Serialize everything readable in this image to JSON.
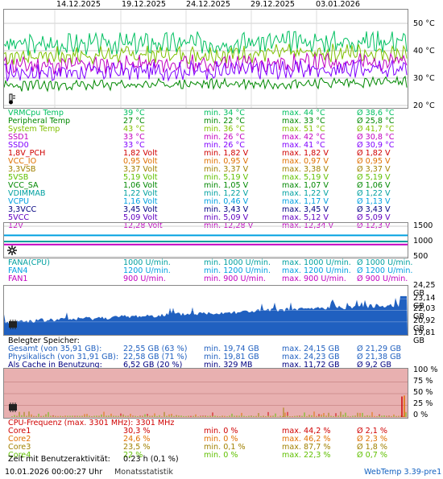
{
  "dates": [
    "14.12.2025",
    "19.12.2025",
    "24.12.2025",
    "29.12.2025",
    "03.01.2026"
  ],
  "temp_panel": {
    "axis": [
      "50 °C",
      "40 °C",
      "30 °C",
      "20 °C"
    ],
    "icon": "thermometer-icon",
    "colors": {
      "vrm": "#00c060",
      "peripheral": "#008800",
      "system": "#80c000",
      "ssd1": "#c000c0",
      "ssd0": "#8000ff"
    }
  },
  "temp_rows": [
    {
      "label": "VRMCpu Temp",
      "cur": "39 °C",
      "min": "min. 34 °C",
      "max": "max. 44 °C",
      "avg": "Ø 38,6 °C",
      "color": "#00c060"
    },
    {
      "label": "Peripheral Temp",
      "cur": "27 °C",
      "min": "min. 22 °C",
      "max": "max. 33 °C",
      "avg": "Ø 25,8 °C",
      "color": "#008800"
    },
    {
      "label": "System Temp",
      "cur": "43 °C",
      "min": "min. 36 °C",
      "max": "max. 51 °C",
      "avg": "Ø 41,7 °C",
      "color": "#80c000"
    },
    {
      "label": "SSD1",
      "cur": "33 °C",
      "min": "min. 26 °C",
      "max": "max. 42 °C",
      "avg": "Ø 30,8 °C",
      "color": "#c000c0"
    },
    {
      "label": "SSD0",
      "cur": "33 °C",
      "min": "min. 26 °C",
      "max": "max. 41 °C",
      "avg": "Ø 30,9 °C",
      "color": "#8000ff"
    }
  ],
  "volt_rows": [
    {
      "label": "1,8V_PCH",
      "cur": "1,82 Volt",
      "min": "min. 1,82 V",
      "max": "max. 1,82 V",
      "avg": "Ø 1,82 V",
      "color": "#d00000"
    },
    {
      "label": "VCC_IO",
      "cur": "0,95 Volt",
      "min": "min. 0,95 V",
      "max": "max. 0,97 V",
      "avg": "Ø 0,95 V",
      "color": "#e07000"
    },
    {
      "label": "3,3VSB",
      "cur": "3,37 Volt",
      "min": "min. 3,37 V",
      "max": "max. 3,38 V",
      "avg": "Ø 3,37 V",
      "color": "#a08000"
    },
    {
      "label": "5VSB",
      "cur": "5,19 Volt",
      "min": "min. 5,19 V",
      "max": "max. 5,19 V",
      "avg": "Ø 5,19 V",
      "color": "#60c000"
    },
    {
      "label": "VCC_SA",
      "cur": "1,06 Volt",
      "min": "min. 1,05 V",
      "max": "max. 1,07 V",
      "avg": "Ø 1,06 V",
      "color": "#008800"
    },
    {
      "label": "VDIMMAB",
      "cur": "1,22 Volt",
      "min": "min. 1,22 V",
      "max": "max. 1,22 V",
      "avg": "Ø 1,22 V",
      "color": "#00a0a0"
    },
    {
      "label": "VCPU",
      "cur": "1,16 Volt",
      "min": "min. 0,46 V",
      "max": "max. 1,17 V",
      "avg": "Ø 1,13 V",
      "color": "#00a0e0"
    },
    {
      "label": "3,3VCC",
      "cur": "3,45 Volt",
      "min": "min. 3,43 V",
      "max": "max. 3,45 V",
      "avg": "Ø 3,43 V",
      "color": "#000080"
    },
    {
      "label": "5VCC",
      "cur": "5,09 Volt",
      "min": "min. 5,09 V",
      "max": "max. 5,12 V",
      "avg": "Ø 5,09 V",
      "color": "#6000c0"
    },
    {
      "label": "12V",
      "cur": "12,28 Volt",
      "min": "min. 12,28 V",
      "max": "max. 12,34 V",
      "avg": "Ø 12,3 V",
      "color": "#c000c0"
    }
  ],
  "fan_panel": {
    "axis": [
      "1500",
      "1000",
      "500"
    ],
    "icon": "fan-icon"
  },
  "fan_rows": [
    {
      "label": "FANA(CPU)",
      "cur": "1000 U/min.",
      "min": "min. 1000 U/min.",
      "max": "max. 1000 U/min.",
      "avg": "Ø 1000 U/min.",
      "color": "#00a0a0"
    },
    {
      "label": "FAN4",
      "cur": "1200 U/min.",
      "min": "min. 1200 U/min.",
      "max": "max. 1200 U/min.",
      "avg": "Ø 1200 U/min.",
      "color": "#00a0e0"
    },
    {
      "label": "FAN1",
      "cur": "900 U/min.",
      "min": "min. 900 U/min.",
      "max": "max. 900 U/min.",
      "avg": "Ø 900 U/min.",
      "color": "#c000c0"
    }
  ],
  "mem_panel": {
    "axis": [
      "24,25 GB",
      "23,14 GB",
      "22,03 GB",
      "20,92 GB",
      "19,81 GB"
    ],
    "icon": "memory-chip-icon",
    "color": "#2060c0"
  },
  "mem_title": "Belegter Speicher:",
  "mem_rows": [
    {
      "label": "Gesamt (von 35,91 GB):",
      "cur": "22,55 GB (63 %)",
      "min": "min. 19,74 GB",
      "max": "max. 24,15 GB",
      "avg": "Ø 21,29 GB",
      "color": "#2060c0"
    },
    {
      "label": "Physikalisch (von 31,91 GB):",
      "cur": "22,58 GB (71 %)",
      "min": "min. 19,81 GB",
      "max": "max. 24,23 GB",
      "avg": "Ø 21,38 GB",
      "color": "#2060c0"
    },
    {
      "label": "Als Cache in Benutzung:",
      "cur": "6,52 GB (20 %)",
      "min": "min. 329 MB",
      "max": "max. 11,72 GB",
      "avg": "Ø 9,2 GB",
      "color": "#000080"
    }
  ],
  "cpu_panel": {
    "axis": [
      "100 %",
      "75 %",
      "50 %",
      "25 %",
      "0 %"
    ],
    "icon": "cpu-chip-icon",
    "bg": "#e8b0b0"
  },
  "cpu_freq": "CPU-Frequenz (max. 3301 MHz): 3301 MHz",
  "cpu_rows": [
    {
      "label": "Core1",
      "cur": "30,3 %",
      "min": "min. 0 %",
      "max": "max. 44,2 %",
      "avg": "Ø 2,1 %",
      "color": "#d00000"
    },
    {
      "label": "Core2",
      "cur": "24,6 %",
      "min": "min. 0 %",
      "max": "max. 46,2 %",
      "avg": "Ø 2,3 %",
      "color": "#e07000"
    },
    {
      "label": "Core3",
      "cur": "23,5 %",
      "min": "min. 0,1 %",
      "max": "max. 87,7 %",
      "avg": "Ø 1,8 %",
      "color": "#a08000"
    },
    {
      "label": "Core4",
      "cur": "22 %",
      "min": "min. 0 %",
      "max": "max. 22,3 %",
      "avg": "Ø 0,7 %",
      "color": "#60c000"
    }
  ],
  "activity": {
    "label": "Zeit mit Benutzeraktivität:",
    "value": "0:23 h (0,1 %)"
  },
  "footer": {
    "timestamp": "10.01.2026 00:00:27 Uhr",
    "link": "Monatsstatistik",
    "version": "WebTemp 3.39-pre1"
  }
}
